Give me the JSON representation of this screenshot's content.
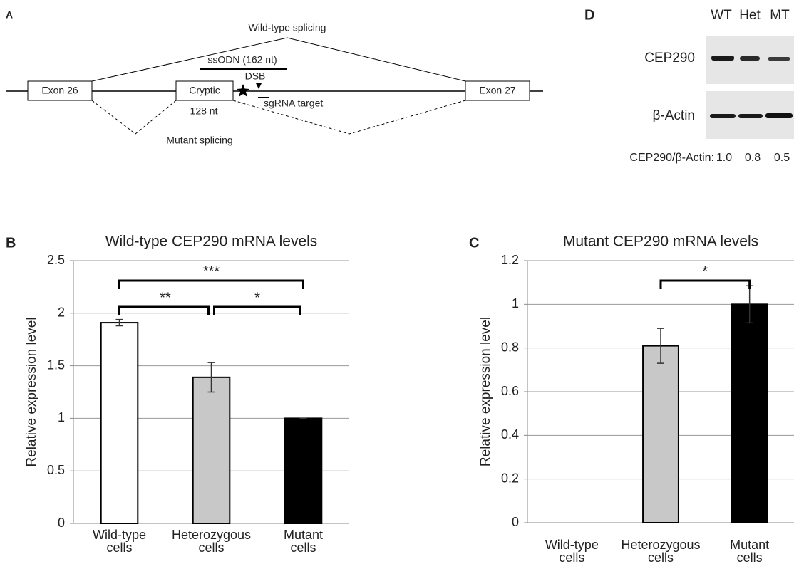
{
  "panel_a": {
    "label": "A",
    "wild_type_splicing": "Wild-type splicing",
    "ssodn": "ssODN (162 nt)",
    "dsb": "DSB",
    "exon_26": "Exon 26",
    "cryptic": "Cryptic",
    "cryptic_length": "128 nt",
    "sgrna": "sgRNA target",
    "exon_27": "Exon 27",
    "mutant_splicing": "Mutant splicing"
  },
  "panel_d": {
    "label": "D",
    "columns": [
      "WT",
      "Het",
      "MT"
    ],
    "rows": [
      "CEP290",
      "β-Actin"
    ],
    "ratio_label": "CEP290/β-Actin:",
    "ratios": [
      "1.0",
      "0.8",
      "0.5"
    ]
  },
  "chart_data": [
    {
      "type": "bar",
      "panel_label": "B",
      "title": "Wild-type CEP290 mRNA levels",
      "ylabel": "Relative expression level",
      "categories": [
        "Wild-type cells",
        "Heterozygous cells",
        "Mutant cells"
      ],
      "values": [
        1.91,
        1.39,
        1.0
      ],
      "errors": [
        0.03,
        0.14,
        0
      ],
      "colors": [
        "#ffffff",
        "#c8c8c8",
        "#000000"
      ],
      "ylim": [
        0,
        2.5
      ],
      "yticks": [
        0,
        0.5,
        1,
        1.5,
        2,
        2.5
      ],
      "grid": true,
      "annotations": [
        {
          "categories": [
            0,
            2
          ],
          "label": "***"
        },
        {
          "categories": [
            0,
            1
          ],
          "label": "**"
        },
        {
          "categories": [
            1,
            2
          ],
          "label": "*"
        }
      ]
    },
    {
      "type": "bar",
      "panel_label": "C",
      "title": "Mutant CEP290 mRNA levels",
      "ylabel": "Relative expression level",
      "categories": [
        "Wild-type cells",
        "Heterozygous cells",
        "Mutant cells"
      ],
      "values": [
        null,
        0.81,
        1.0
      ],
      "errors": [
        null,
        0.08,
        0.085
      ],
      "colors": [
        "#ffffff",
        "#c8c8c8",
        "#000000"
      ],
      "ylim": [
        0,
        1.2
      ],
      "yticks": [
        0,
        0.2,
        0.4,
        0.6,
        0.8,
        1,
        1.2
      ],
      "grid": true,
      "annotations": [
        {
          "categories": [
            1,
            2
          ],
          "label": "*"
        }
      ]
    }
  ]
}
